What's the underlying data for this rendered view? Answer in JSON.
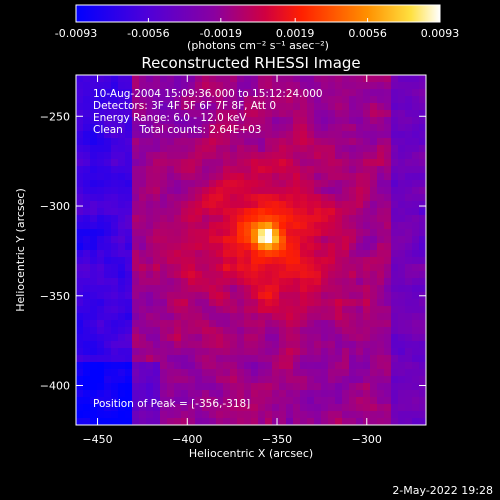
{
  "colorbar": {
    "min": -0.0093,
    "max": 0.0093,
    "tick_labels": [
      "-0.0093",
      "-0.0056",
      "-0.0019",
      "0.0019",
      "0.0056",
      "0.0093"
    ],
    "tick_values": [
      -0.0093,
      -0.0056,
      -0.0019,
      0.0019,
      0.0056,
      0.0093
    ],
    "unit_label": "(photons cm⁻² s⁻¹ asec⁻²)"
  },
  "chart_data": {
    "type": "heatmap",
    "title": "Reconstructed RHESSI Image",
    "xlabel": "Heliocentric X (arcsec)",
    "ylabel": "Heliocentric Y (arcsec)",
    "xlim": [
      -462,
      -267
    ],
    "ylim": [
      -422,
      -227
    ],
    "xticks": [
      -450,
      -400,
      -350,
      -300
    ],
    "yticks": [
      -400,
      -350,
      -300,
      -250
    ],
    "peak": [
      -356,
      -318
    ],
    "peak_value": 0.0093,
    "annotations": [
      "10-Aug-2004 15:09:36.000 to 15:12:24.000",
      "Detectors: 3F 4F 5F 6F 7F 8F, Att 0",
      "Energy Range: 6.0 - 12.0 keV",
      "Clean     Total counts: 2.64E+03"
    ],
    "peak_label": "Position of Peak = [-356,-318]",
    "colormap": [
      "#0000ff",
      "#6a00c0",
      "#b0007a",
      "#ff2000",
      "#ff9000",
      "#ffffff"
    ]
  },
  "footer": {
    "date": "2-May-2022 19:28"
  }
}
